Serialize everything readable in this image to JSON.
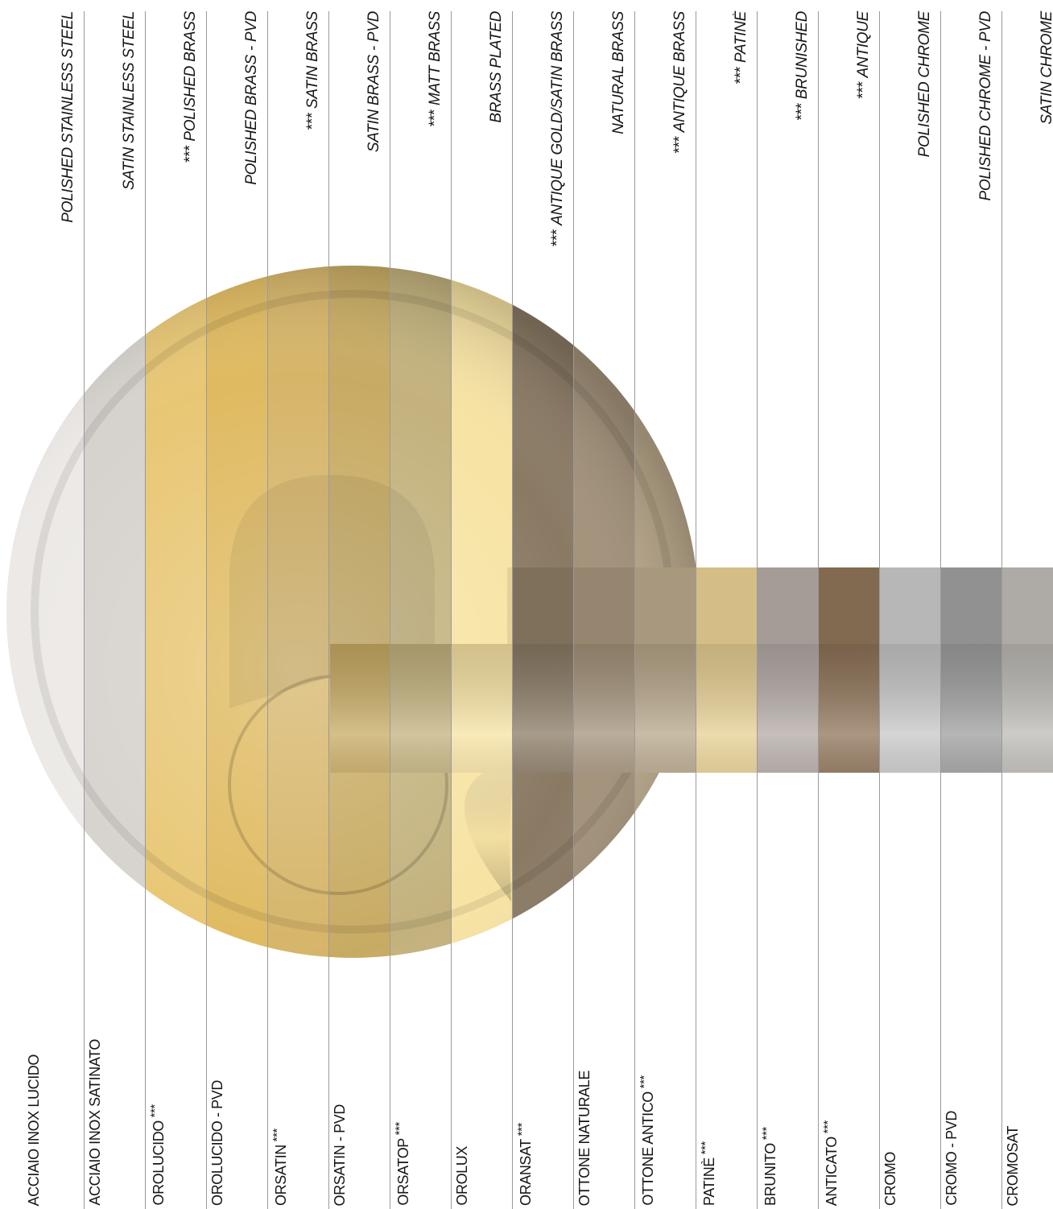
{
  "finishes": [
    {
      "english": "POLISHED STAINLESS STEEL",
      "italian": "ACCIAIO INOX LUCIDO",
      "english_stars": "",
      "italian_stars": "",
      "tone": "#ece9e6"
    },
    {
      "english": "SATIN STAINLESS STEEL",
      "italian": "ACCIAIO INOX SATINATO",
      "english_stars": "",
      "italian_stars": "",
      "tone": "#d6d2cd"
    },
    {
      "english": "POLISHED BRASS",
      "italian": "OROLUCIDO",
      "english_stars": "***",
      "italian_stars": "***",
      "tone": "#e8c774"
    },
    {
      "english": "POLISHED BRASS - PVD",
      "italian": "OROLUCIDO - PVD",
      "english_stars": "",
      "italian_stars": "",
      "tone": "#dfba60"
    },
    {
      "english": "SATIN BRASS",
      "italian": "ORSATIN",
      "english_stars": "***",
      "italian_stars": "***",
      "tone": "#d6b569"
    },
    {
      "english": "SATIN BRASS - PVD",
      "italian": "ORSATIN - PVD",
      "english_stars": "",
      "italian_stars": "",
      "tone": "#c8ab63"
    },
    {
      "english": "MATT BRASS",
      "italian": "ORSATOP",
      "english_stars": "***",
      "italian_stars": "***",
      "tone": "#c3b27d"
    },
    {
      "english": "BRASS PLATED",
      "italian": "OROLUX",
      "english_stars": "",
      "italian_stars": "",
      "tone": "#f7e3a3"
    },
    {
      "english": "ANTIQUE GOLD/SATIN BRASS",
      "italian": "ORANSAT",
      "english_stars": "***",
      "italian_stars": "***",
      "tone": "#8a7a64"
    },
    {
      "english": "NATURAL BRASS",
      "italian": "OTTONE NATURALE",
      "english_stars": "",
      "italian_stars": "",
      "tone": "#a3927a"
    },
    {
      "english": "ANTIQUE  BRASS",
      "italian": "OTTONE ANTICO",
      "english_stars": "***",
      "italian_stars": "***",
      "tone": "#b7a689"
    },
    {
      "english": "PATINÈ",
      "italian": "PATINÈ",
      "english_stars": "***",
      "italian_stars": "***",
      "tone": "#e6cf92"
    },
    {
      "english": "BRUNISHED",
      "italian": "BRUNITO",
      "english_stars": "***",
      "italian_stars": "***",
      "tone": "#b3aaa5"
    },
    {
      "english": "ANTIQUE",
      "italian": "ANTICATO",
      "english_stars": "***",
      "italian_stars": "***",
      "tone": "#8e7358"
    },
    {
      "english": "POLISHED CHROME",
      "italian": "CROMO",
      "english_stars": "",
      "italian_stars": "",
      "tone": "#c7c7c7"
    },
    {
      "english": "POLISHED CHROME - PVD",
      "italian": "CROMO - PVD",
      "english_stars": "",
      "italian_stars": "",
      "tone": "#9e9e9e"
    },
    {
      "english": "SATIN CHROME",
      "italian": "CROMOSAT",
      "english_stars": "",
      "italian_stars": "",
      "tone": "#bdbab5"
    }
  ]
}
